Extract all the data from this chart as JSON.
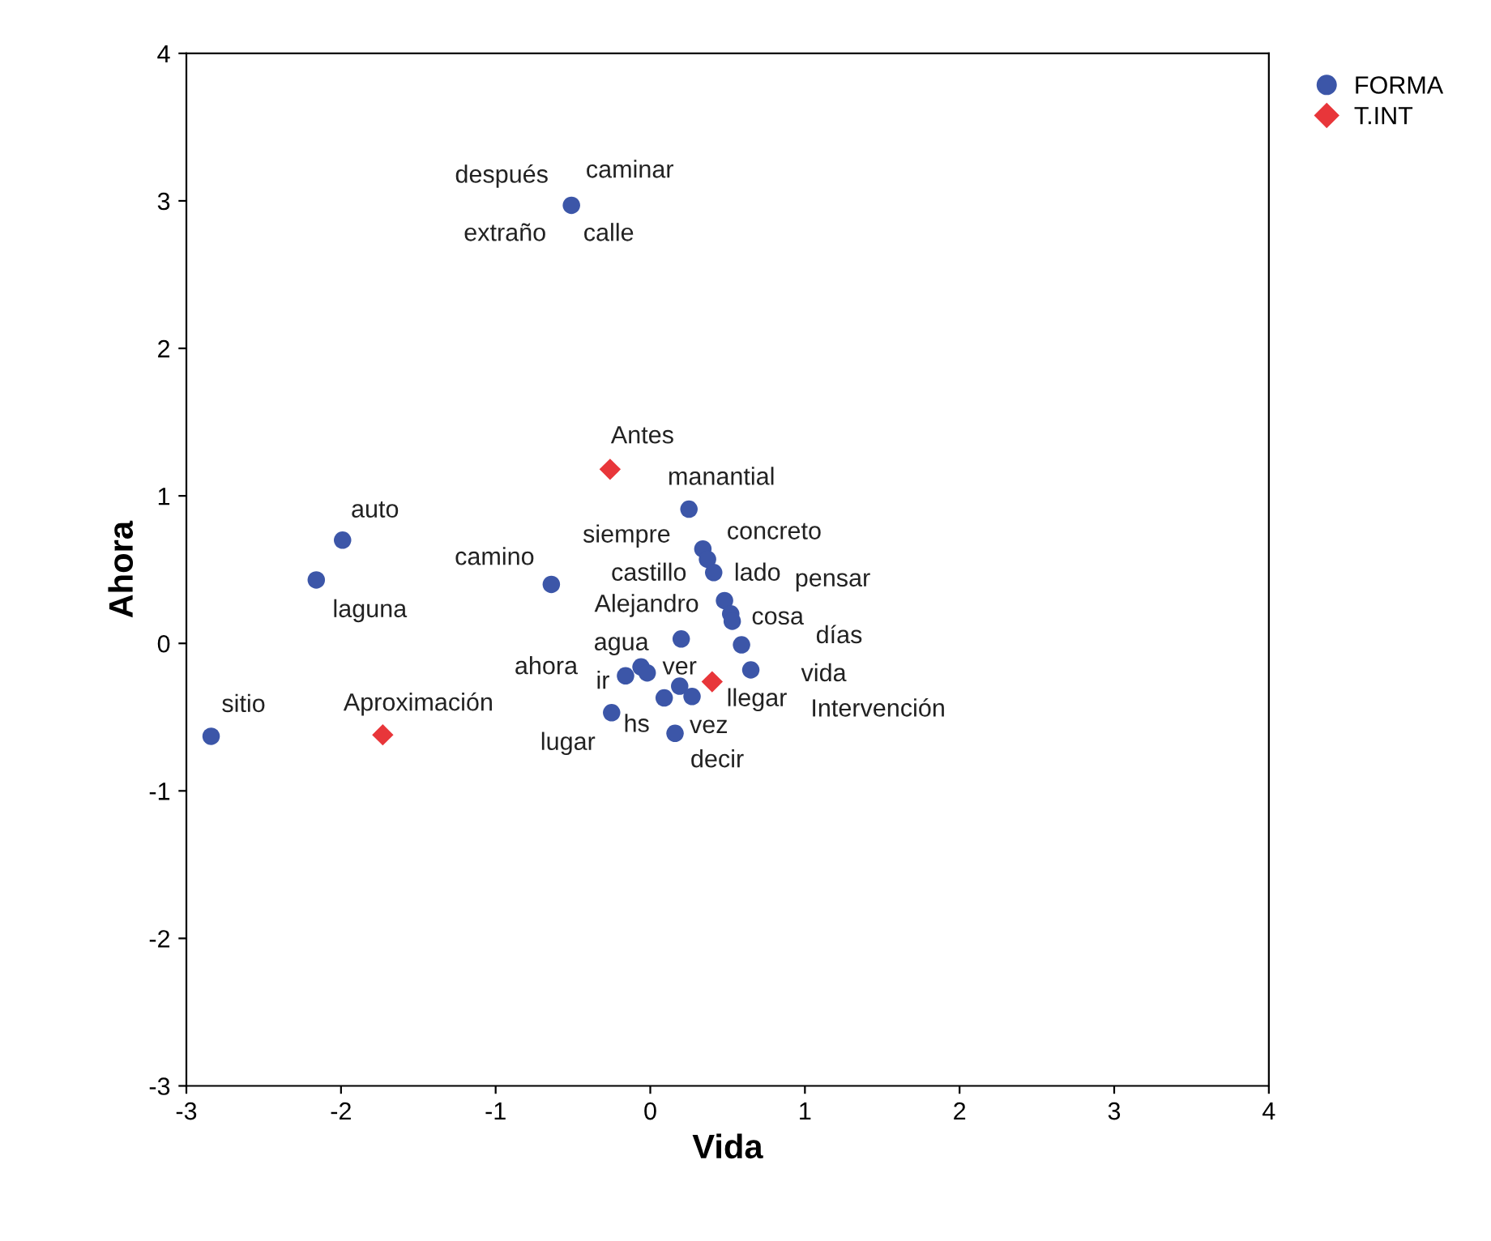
{
  "chart_data": {
    "type": "scatter",
    "xlabel": "Vida",
    "ylabel": "Ahora",
    "xlim": [
      -3,
      4
    ],
    "ylim": [
      -3,
      4
    ],
    "xticks": [
      -3,
      -2,
      -1,
      0,
      1,
      2,
      3,
      4
    ],
    "yticks": [
      -3,
      -2,
      -1,
      0,
      1,
      2,
      3,
      4
    ],
    "grid": false,
    "legend": "top right",
    "series": [
      {
        "name": "FORMA",
        "color": "#3c56a8",
        "marker": "circle",
        "x": [
          -0.51,
          -1.99,
          -2.16,
          -2.84,
          -0.64,
          0.25,
          0.34,
          0.37,
          0.41,
          0.48,
          0.52,
          0.53,
          0.59,
          0.65,
          0.2,
          -0.16,
          -0.06,
          -0.02,
          0.09,
          0.19,
          0.27,
          -0.25,
          0.16
        ],
        "values": [
          2.97,
          0.7,
          0.43,
          -0.63,
          0.4,
          0.91,
          0.64,
          0.57,
          0.48,
          0.29,
          0.2,
          0.15,
          -0.01,
          -0.18,
          0.03,
          -0.22,
          -0.16,
          -0.2,
          -0.37,
          -0.29,
          -0.36,
          -0.47,
          -0.61
        ]
      },
      {
        "name": "T.INT",
        "color": "#e8363a",
        "marker": "diamond",
        "x": [
          -0.26,
          -1.73,
          0.4
        ],
        "values": [
          1.18,
          -0.62,
          -0.26
        ]
      }
    ],
    "annotations": [
      {
        "text": "caminar",
        "x": -0.51,
        "y": 2.97
      },
      {
        "text": "después",
        "x": -0.51,
        "y": 2.97
      },
      {
        "text": "extraño",
        "x": -0.51,
        "y": 2.97
      },
      {
        "text": "calle",
        "x": -0.51,
        "y": 2.97
      },
      {
        "text": "auto",
        "x": -1.99,
        "y": 0.7
      },
      {
        "text": "laguna",
        "x": -2.16,
        "y": 0.43
      },
      {
        "text": "sitio",
        "x": -2.84,
        "y": -0.63
      },
      {
        "text": "camino",
        "x": -0.64,
        "y": 0.4
      },
      {
        "text": "manantial",
        "x": 0.25,
        "y": 0.91
      },
      {
        "text": "siempre",
        "x": 0.34,
        "y": 0.64
      },
      {
        "text": "concreto",
        "x": 0.34,
        "y": 0.64
      },
      {
        "text": "castillo",
        "x": 0.41,
        "y": 0.48
      },
      {
        "text": "lado",
        "x": 0.41,
        "y": 0.48
      },
      "pensar",
      {
        "text": "Alejandro",
        "x": 0.48,
        "y": 0.29
      },
      {
        "text": "cosa",
        "x": 0.53,
        "y": 0.15
      },
      "días",
      {
        "text": "vida",
        "x": 0.65,
        "y": -0.18
      },
      {
        "text": "agua",
        "x": 0.2,
        "y": 0.03
      },
      {
        "text": "ahora",
        "x": -0.16,
        "y": -0.22
      },
      {
        "text": "ir",
        "x": -0.16,
        "y": -0.22
      },
      {
        "text": "ver",
        "x": -0.02,
        "y": -0.2
      },
      {
        "text": "llegar",
        "x": 0.27,
        "y": -0.36
      },
      {
        "text": "hs",
        "x": 0.09,
        "y": -0.37
      },
      {
        "text": "vez",
        "x": 0.19,
        "y": -0.29
      },
      {
        "text": "lugar",
        "x": -0.25,
        "y": -0.47
      },
      {
        "text": "decir",
        "x": 0.16,
        "y": -0.61
      },
      {
        "text": "Antes",
        "x": -0.26,
        "y": 1.18
      },
      {
        "text": "Aproximación",
        "x": -1.73,
        "y": -0.62
      },
      "Intervención"
    ]
  }
}
